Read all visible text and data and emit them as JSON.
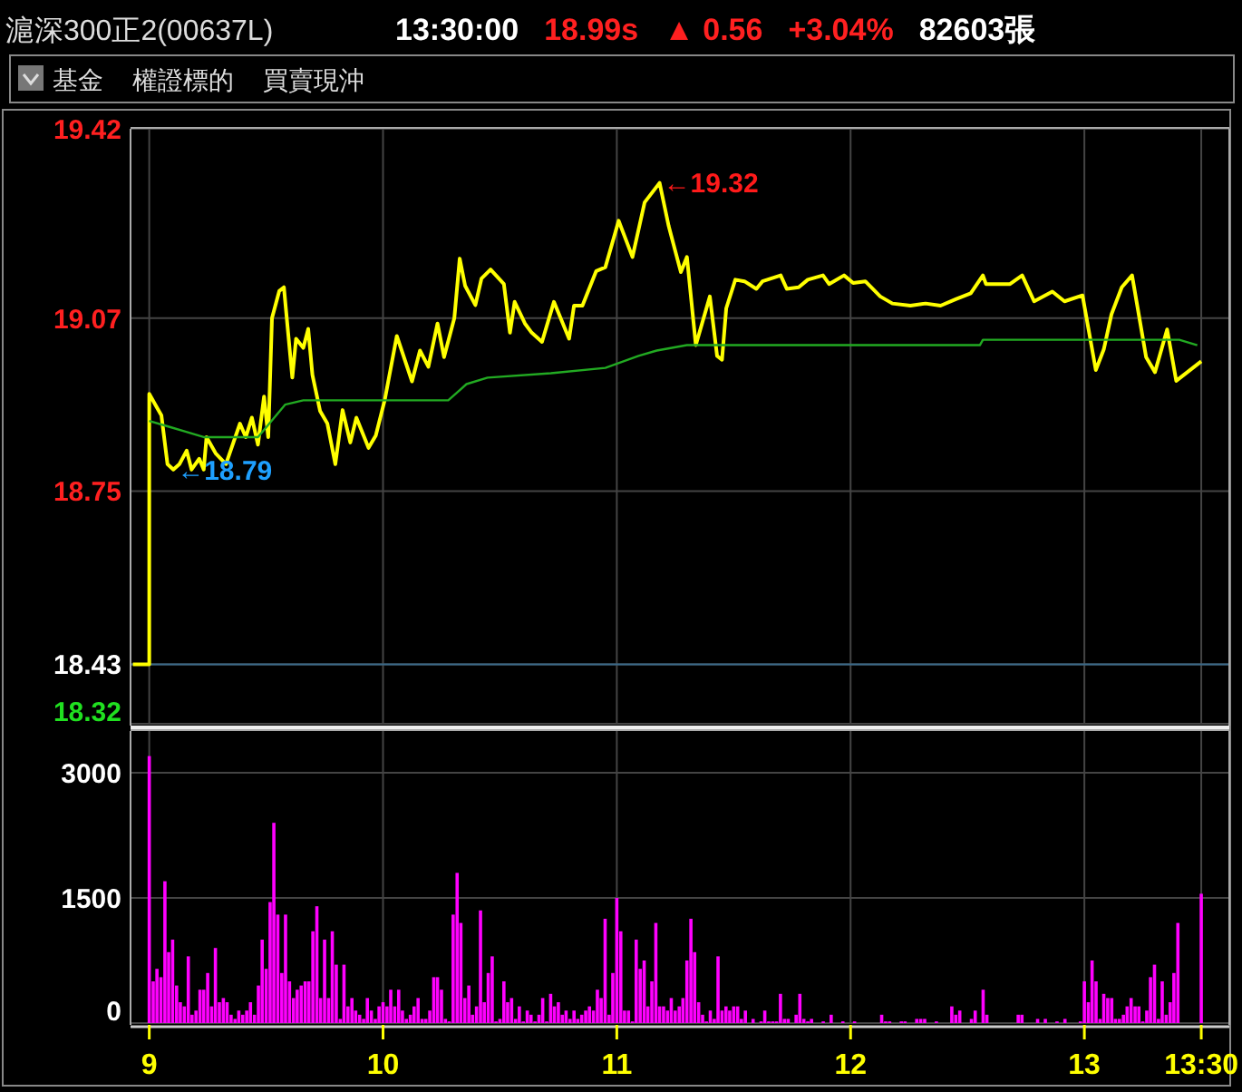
{
  "chart_data": [
    {
      "type": "line",
      "title": "滬深300正2(00637L)",
      "annotations": [
        "13:30:00",
        "18.99s",
        "▲ 0.56",
        "+3.04%",
        "82603張",
        "基金",
        "權證標的",
        "買賣現沖",
        {
          "text": "←19.32",
          "x": 11.183,
          "y": 19.32
        },
        {
          "text": "←18.79",
          "x": 9.103,
          "y": 18.79
        }
      ],
      "series": [
        {
          "color": "#ffff00",
          "x": [
            8.93,
            9,
            9,
            9.026,
            9.052,
            9.078,
            9.103,
            9.129,
            9.16,
            9.181,
            9.214,
            9.233,
            9.245,
            9.284,
            9.328,
            9.388,
            9.413,
            9.439,
            9.465,
            9.491,
            9.509,
            9.525,
            9.556,
            9.576,
            9.594,
            9.612,
            9.628,
            9.659,
            9.68,
            9.698,
            9.731,
            9.762,
            9.796,
            9.827,
            9.86,
            9.886,
            9.938,
            9.969,
            10.008,
            10.059,
            10.124,
            10.158,
            10.194,
            10.233,
            10.261,
            10.305,
            10.328,
            10.351,
            10.395,
            10.421,
            10.46,
            10.517,
            10.543,
            10.563,
            10.607,
            10.636,
            10.68,
            10.731,
            10.796,
            10.817,
            10.853,
            10.912,
            10.951,
            11.008,
            11.067,
            11.119,
            11.183,
            11.222,
            11.274,
            11.3,
            11.338,
            11.398,
            11.429,
            11.45,
            11.468,
            11.507,
            11.546,
            11.597,
            11.623,
            11.701,
            11.727,
            11.778,
            11.817,
            11.882,
            11.908,
            11.972,
            12.011,
            12.063,
            12.127,
            12.179,
            12.256,
            12.321,
            12.385,
            12.45,
            12.514,
            12.566,
            12.579,
            12.682,
            12.734,
            12.785,
            12.863,
            12.915,
            12.992,
            13.049,
            13.083,
            13.116,
            13.16,
            13.204,
            13.264,
            13.302,
            13.354,
            13.393,
            13.5
          ],
          "values": [
            18.43,
            18.43,
            18.93,
            18.91,
            18.89,
            18.8,
            18.79,
            18.8,
            18.825,
            18.79,
            18.81,
            18.79,
            18.85,
            18.82,
            18.8,
            18.875,
            18.85,
            18.886,
            18.836,
            18.925,
            18.85,
            19.07,
            19.12,
            19.127,
            19.043,
            18.96,
            19.032,
            19.015,
            19.05,
            18.965,
            18.898,
            18.875,
            18.8,
            18.9,
            18.84,
            18.886,
            18.83,
            18.853,
            18.92,
            19.037,
            18.953,
            19.01,
            18.98,
            19.06,
            18.998,
            19.07,
            19.18,
            19.13,
            19.094,
            19.143,
            19.16,
            19.133,
            19.043,
            19.1,
            19.06,
            19.043,
            19.026,
            19.1,
            19.032,
            19.093,
            19.093,
            19.157,
            19.164,
            19.25,
            19.183,
            19.284,
            19.32,
            19.24,
            19.155,
            19.183,
            19.02,
            19.11,
            19.0,
            18.993,
            19.088,
            19.141,
            19.138,
            19.124,
            19.138,
            19.149,
            19.124,
            19.127,
            19.141,
            19.149,
            19.133,
            19.149,
            19.135,
            19.138,
            19.11,
            19.097,
            19.093,
            19.097,
            19.093,
            19.105,
            19.116,
            19.149,
            19.133,
            19.133,
            19.149,
            19.101,
            19.119,
            19.101,
            19.112,
            18.974,
            19.012,
            19.077,
            19.127,
            19.149,
            18.998,
            18.97,
            19.049,
            18.954,
            18.99
          ]
        },
        {
          "color": "#22aa22",
          "x": [
            9,
            9.078,
            9.155,
            9.233,
            9.465,
            9.581,
            9.659,
            10.279,
            10.357,
            10.447,
            10.718,
            10.951,
            11.093,
            11.171,
            11.3,
            12.553,
            12.566,
            13.406,
            13.483
          ],
          "values": [
            18.88,
            18.87,
            18.86,
            18.85,
            18.85,
            18.91,
            18.918,
            18.918,
            18.948,
            18.96,
            18.968,
            18.978,
            19.0,
            19.01,
            19.02,
            19.02,
            19.03,
            19.03,
            19.02
          ]
        }
      ],
      "xlim": [
        8.92,
        13.62
      ],
      "xticks": [
        9,
        10,
        11,
        12,
        13,
        13.5
      ],
      "ylim": [
        18.32,
        19.42
      ],
      "yticks": [
        19.42,
        19.07,
        18.75,
        18.43,
        18.32
      ],
      "ref_lines": [
        {
          "axis": "y",
          "value": 18.43,
          "color": "#3a6a8a"
        }
      ],
      "grid": true,
      "tick_labels": "y"
    },
    {
      "type": "bar",
      "color": "#ff00ff",
      "x": [
        9,
        9.017,
        9.033,
        9.05,
        9.067,
        9.083,
        9.1,
        9.117,
        9.133,
        9.15,
        9.167,
        9.183,
        9.2,
        9.217,
        9.233,
        9.25,
        9.267,
        9.283,
        9.3,
        9.317,
        9.333,
        9.35,
        9.367,
        9.383,
        9.4,
        9.417,
        9.433,
        9.45,
        9.467,
        9.483,
        9.5,
        9.517,
        9.533,
        9.55,
        9.567,
        9.583,
        9.6,
        9.617,
        9.633,
        9.65,
        9.667,
        9.683,
        9.7,
        9.717,
        9.733,
        9.75,
        9.767,
        9.783,
        9.8,
        9.817,
        9.833,
        9.85,
        9.867,
        9.883,
        9.9,
        9.917,
        9.933,
        9.95,
        9.967,
        9.983,
        10,
        10.017,
        10.033,
        10.05,
        10.067,
        10.083,
        10.1,
        10.117,
        10.133,
        10.15,
        10.167,
        10.183,
        10.2,
        10.217,
        10.233,
        10.25,
        10.267,
        10.283,
        10.3,
        10.317,
        10.333,
        10.35,
        10.367,
        10.383,
        10.4,
        10.417,
        10.433,
        10.45,
        10.467,
        10.483,
        10.5,
        10.517,
        10.533,
        10.55,
        10.567,
        10.583,
        10.6,
        10.617,
        10.633,
        10.65,
        10.667,
        10.683,
        10.7,
        10.717,
        10.733,
        10.75,
        10.767,
        10.783,
        10.8,
        10.817,
        10.833,
        10.85,
        10.867,
        10.883,
        10.9,
        10.917,
        10.933,
        10.95,
        10.967,
        10.983,
        11,
        11.017,
        11.033,
        11.05,
        11.067,
        11.083,
        11.1,
        11.117,
        11.133,
        11.15,
        11.167,
        11.183,
        11.2,
        11.217,
        11.233,
        11.25,
        11.267,
        11.283,
        11.3,
        11.317,
        11.333,
        11.35,
        11.367,
        11.383,
        11.4,
        11.417,
        11.433,
        11.45,
        11.467,
        11.483,
        11.5,
        11.517,
        11.533,
        11.55,
        11.583,
        11.617,
        11.633,
        11.65,
        11.667,
        11.683,
        11.7,
        11.717,
        11.733,
        11.767,
        11.783,
        11.8,
        11.817,
        11.833,
        11.883,
        11.917,
        11.967,
        12.017,
        12.133,
        12.15,
        12.167,
        12.217,
        12.233,
        12.283,
        12.3,
        12.317,
        12.367,
        12.433,
        12.45,
        12.467,
        12.517,
        12.533,
        12.567,
        12.583,
        12.717,
        12.733,
        12.8,
        12.833,
        12.883,
        12.917,
        12.983,
        13,
        13.017,
        13.033,
        13.05,
        13.067,
        13.083,
        13.1,
        13.117,
        13.133,
        13.15,
        13.167,
        13.183,
        13.2,
        13.217,
        13.233,
        13.25,
        13.267,
        13.283,
        13.3,
        13.317,
        13.333,
        13.35,
        13.367,
        13.383,
        13.4,
        13.5
      ],
      "values": [
        3200,
        500,
        650,
        550,
        1700,
        850,
        1000,
        450,
        250,
        200,
        800,
        100,
        150,
        400,
        400,
        600,
        200,
        900,
        250,
        300,
        250,
        100,
        50,
        150,
        100,
        150,
        250,
        100,
        450,
        1000,
        650,
        1450,
        2400,
        1300,
        600,
        1300,
        500,
        300,
        400,
        450,
        500,
        500,
        1100,
        1400,
        300,
        1000,
        300,
        1100,
        700,
        50,
        700,
        200,
        300,
        150,
        100,
        50,
        300,
        150,
        50,
        200,
        250,
        200,
        400,
        200,
        400,
        150,
        50,
        100,
        200,
        300,
        50,
        50,
        150,
        550,
        550,
        400,
        50,
        20,
        1300,
        1800,
        1200,
        300,
        450,
        100,
        200,
        1350,
        250,
        600,
        800,
        20,
        50,
        500,
        250,
        300,
        50,
        200,
        20,
        150,
        100,
        20,
        100,
        300,
        20,
        350,
        200,
        250,
        100,
        150,
        50,
        150,
        50,
        100,
        150,
        200,
        150,
        400,
        300,
        1250,
        100,
        600,
        1500,
        1100,
        150,
        150,
        20,
        1000,
        650,
        750,
        200,
        500,
        1200,
        200,
        200,
        150,
        300,
        150,
        200,
        300,
        750,
        1250,
        850,
        250,
        100,
        20,
        150,
        50,
        800,
        150,
        200,
        150,
        200,
        200,
        50,
        150,
        50,
        20,
        150,
        20,
        20,
        20,
        350,
        50,
        50,
        100,
        350,
        50,
        20,
        50,
        20,
        100,
        20,
        20,
        100,
        20,
        20,
        20,
        20,
        50,
        50,
        50,
        20,
        200,
        100,
        150,
        50,
        150,
        400,
        100,
        100,
        100,
        50,
        50,
        20,
        50,
        20,
        500,
        250,
        750,
        500,
        50,
        350,
        300,
        300,
        50,
        50,
        100,
        200,
        300,
        200,
        200,
        20,
        150,
        550,
        700,
        50,
        500,
        100,
        250,
        600,
        1200,
        1550
      ],
      "xlim": [
        8.92,
        13.62
      ],
      "xticks": [
        9,
        10,
        11,
        12,
        13,
        {
          "value": 13.5,
          "label": "13:30"
        }
      ],
      "ylim": [
        0,
        3500
      ],
      "yticks": [
        0,
        1500,
        3000
      ],
      "grid": true
    }
  ]
}
